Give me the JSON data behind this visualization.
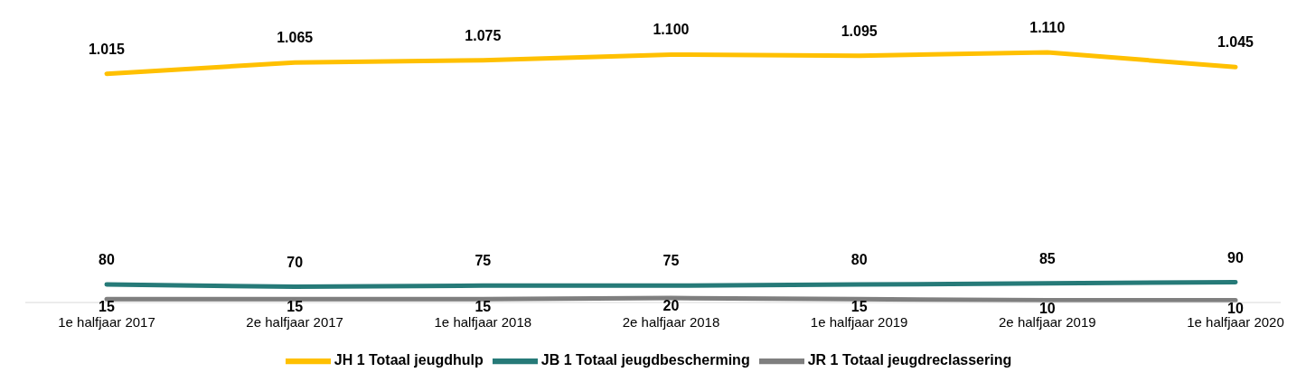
{
  "chart_data": {
    "type": "line",
    "categories": [
      "1e halfjaar 2017",
      "2e halfjaar 2017",
      "1e halfjaar 2018",
      "2e halfjaar 2018",
      "1e halfjaar 2019",
      "2e halfjaar 2019",
      "1e halfjaar 2020"
    ],
    "series": [
      {
        "name": "JH 1 Totaal jeugdhulp",
        "color": "#ffc000",
        "values": [
          1015,
          1065,
          1075,
          1100,
          1095,
          1110,
          1045
        ],
        "value_labels": [
          "1.015",
          "1.065",
          "1.075",
          "1.100",
          "1.095",
          "1.110",
          "1.045"
        ]
      },
      {
        "name": "JB 1 Totaal jeugdbescherming",
        "color": "#267a78",
        "values": [
          80,
          70,
          75,
          75,
          80,
          85,
          90
        ],
        "value_labels": [
          "80",
          "70",
          "75",
          "75",
          "80",
          "85",
          "90"
        ]
      },
      {
        "name": "JR 1 Totaal jeugdreclassering",
        "color": "#7f7f7f",
        "values": [
          15,
          15,
          15,
          20,
          15,
          10,
          10
        ],
        "value_labels": [
          "15",
          "15",
          "15",
          "20",
          "15",
          "10",
          "10"
        ]
      }
    ],
    "legend": "bottom",
    "marker": "none",
    "line_style": "solid",
    "grid": false
  }
}
